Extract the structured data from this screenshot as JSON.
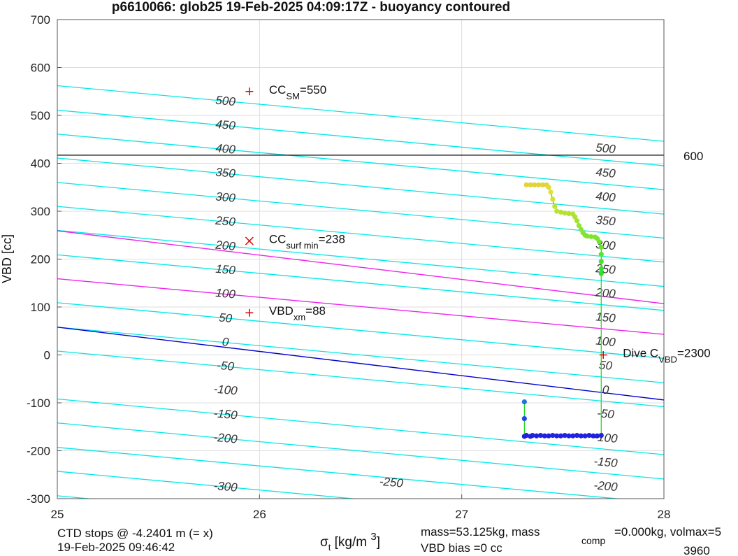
{
  "chart_data": {
    "type": "scatter",
    "title": "p6610066: glob25 19-Feb-2025 04:09:17Z - buoyancy contoured",
    "xlabel": {
      "sym": "σ",
      "sub": "t",
      "unit": " [kg/m ",
      "sup": "3",
      "close": "]"
    },
    "ylabel": "VBD [cc]",
    "xlim": [
      25,
      28
    ],
    "ylim": [
      -300,
      700
    ],
    "xticks": [
      "25",
      "26",
      "27",
      "28"
    ],
    "yticks": [
      "-300",
      "-200",
      "-100",
      "0",
      "100",
      "200",
      "300",
      "400",
      "500",
      "600",
      "700"
    ],
    "grid": true,
    "contour_lines": [
      {
        "level": -250,
        "at25": -294,
        "at28": -410
      },
      {
        "level": -200,
        "at25": -243,
        "at28": -360
      },
      {
        "level": -150,
        "at25": -193,
        "at28": -309
      },
      {
        "level": -100,
        "at25": -142,
        "at28": -259
      },
      {
        "level": -50,
        "at25": -92,
        "at28": -208
      },
      {
        "level": 0,
        "at25": 8,
        "at28": -108
      },
      {
        "level": 50,
        "at25": 58,
        "at28": -58
      },
      {
        "level": 100,
        "at25": 109,
        "at28": -7
      },
      {
        "level": 150,
        "at25": 209,
        "at28": 93
      },
      {
        "level": 200,
        "at25": 260,
        "at28": 143
      },
      {
        "level": 250,
        "at25": 310,
        "at28": 194
      },
      {
        "level": 300,
        "at25": 360,
        "at28": 244
      },
      {
        "level": 350,
        "at25": 411,
        "at28": 294
      },
      {
        "level": 400,
        "at25": 461,
        "at28": 345
      },
      {
        "level": 450,
        "at25": 511,
        "at28": 395
      },
      {
        "level": 500,
        "at25": 562,
        "at28": 446
      }
    ],
    "magenta_lines": [
      {
        "at25": 159,
        "at28": 43
      },
      {
        "at25": 259,
        "at28": 107
      }
    ],
    "zero_line": {
      "at25": 58,
      "at28": -94
    },
    "hline": {
      "y": 417,
      "label": "600"
    },
    "contour_labels": [
      {
        "text": "-300",
        "x": 25.83,
        "y": -283
      },
      {
        "text": "-250",
        "x": 26.65,
        "y": -274
      },
      {
        "text": "-200",
        "x": 25.83,
        "y": -182
      },
      {
        "text": "-150",
        "x": 25.83,
        "y": -132
      },
      {
        "text": "-100",
        "x": 25.83,
        "y": -81
      },
      {
        "text": "-50",
        "x": 25.83,
        "y": -31
      },
      {
        "text": "0",
        "x": 25.83,
        "y": 19
      },
      {
        "text": "50",
        "x": 25.83,
        "y": 69
      },
      {
        "text": "100",
        "x": 25.83,
        "y": 120
      },
      {
        "text": "150",
        "x": 25.83,
        "y": 170
      },
      {
        "text": "200",
        "x": 25.83,
        "y": 220
      },
      {
        "text": "250",
        "x": 25.83,
        "y": 271
      },
      {
        "text": "300",
        "x": 25.83,
        "y": 321
      },
      {
        "text": "350",
        "x": 25.83,
        "y": 372
      },
      {
        "text": "400",
        "x": 25.83,
        "y": 422
      },
      {
        "text": "450",
        "x": 25.83,
        "y": 472
      },
      {
        "text": "500",
        "x": 25.83,
        "y": 522
      },
      {
        "text": "-200",
        "x": 27.71,
        "y": -282
      },
      {
        "text": "-150",
        "x": 27.71,
        "y": -232
      },
      {
        "text": "-100",
        "x": 27.71,
        "y": -181
      },
      {
        "text": "-50",
        "x": 27.71,
        "y": -131
      },
      {
        "text": "0",
        "x": 27.71,
        "y": -81
      },
      {
        "text": "50",
        "x": 27.71,
        "y": -30
      },
      {
        "text": "100",
        "x": 27.71,
        "y": 20
      },
      {
        "text": "150",
        "x": 27.71,
        "y": 70
      },
      {
        "text": "200",
        "x": 27.71,
        "y": 121
      },
      {
        "text": "250",
        "x": 27.71,
        "y": 171
      },
      {
        "text": "300",
        "x": 27.71,
        "y": 221
      },
      {
        "text": "350",
        "x": 27.71,
        "y": 272
      },
      {
        "text": "400",
        "x": 27.71,
        "y": 322
      },
      {
        "text": "450",
        "x": 27.71,
        "y": 372
      },
      {
        "text": "500",
        "x": 27.71,
        "y": 423
      }
    ],
    "markers": [
      {
        "x": 25.95,
        "y": 550,
        "symbol": "+",
        "color": "#e00000",
        "label": "CC",
        "sub": "SM",
        "suffix": "=550"
      },
      {
        "x": 25.95,
        "y": 238,
        "symbol": "x",
        "color": "#e00000",
        "label": "CC",
        "sub": "surf min",
        "suffix": "=238"
      },
      {
        "x": 25.95,
        "y": 88,
        "symbol": "+",
        "color": "#e00000",
        "label": "VBD",
        "sub": "xm",
        "suffix": "=88"
      },
      {
        "x": 27.7,
        "y": 0,
        "symbol": "+",
        "color": "#e00000",
        "label": "Dive C",
        "sub": "VBD",
        "suffix": "=2300"
      }
    ],
    "trace_line_color": "#22dd22",
    "descent_points": [
      {
        "x": 27.32,
        "y": 355
      },
      {
        "x": 27.34,
        "y": 355
      },
      {
        "x": 27.36,
        "y": 355
      },
      {
        "x": 27.38,
        "y": 355
      },
      {
        "x": 27.4,
        "y": 355
      },
      {
        "x": 27.42,
        "y": 355
      },
      {
        "x": 27.43,
        "y": 350
      },
      {
        "x": 27.44,
        "y": 340
      },
      {
        "x": 27.45,
        "y": 325
      },
      {
        "x": 27.46,
        "y": 310
      },
      {
        "x": 27.47,
        "y": 300
      },
      {
        "x": 27.49,
        "y": 298
      },
      {
        "x": 27.51,
        "y": 296
      },
      {
        "x": 27.53,
        "y": 295
      },
      {
        "x": 27.55,
        "y": 294
      },
      {
        "x": 27.56,
        "y": 288
      },
      {
        "x": 27.57,
        "y": 280
      },
      {
        "x": 27.58,
        "y": 270
      },
      {
        "x": 27.59,
        "y": 262
      },
      {
        "x": 27.6,
        "y": 255
      },
      {
        "x": 27.61,
        "y": 250
      },
      {
        "x": 27.62,
        "y": 248
      },
      {
        "x": 27.64,
        "y": 247
      },
      {
        "x": 27.66,
        "y": 246
      },
      {
        "x": 27.67,
        "y": 243
      },
      {
        "x": 27.68,
        "y": 236
      },
      {
        "x": 27.69,
        "y": 225
      },
      {
        "x": 27.69,
        "y": 210
      },
      {
        "x": 27.69,
        "y": 195
      },
      {
        "x": 27.69,
        "y": 180
      },
      {
        "x": 27.69,
        "y": 170
      }
    ],
    "climb_points": [
      {
        "x": 27.69,
        "y": -168
      },
      {
        "x": 27.67,
        "y": -169
      },
      {
        "x": 27.65,
        "y": -169
      },
      {
        "x": 27.63,
        "y": -168
      },
      {
        "x": 27.61,
        "y": -169
      },
      {
        "x": 27.59,
        "y": -169
      },
      {
        "x": 27.57,
        "y": -168
      },
      {
        "x": 27.55,
        "y": -169
      },
      {
        "x": 27.53,
        "y": -169
      },
      {
        "x": 27.51,
        "y": -168
      },
      {
        "x": 27.49,
        "y": -169
      },
      {
        "x": 27.47,
        "y": -169
      },
      {
        "x": 27.45,
        "y": -168
      },
      {
        "x": 27.43,
        "y": -169
      },
      {
        "x": 27.41,
        "y": -169
      },
      {
        "x": 27.39,
        "y": -168
      },
      {
        "x": 27.37,
        "y": -169
      },
      {
        "x": 27.35,
        "y": -168
      },
      {
        "x": 27.34,
        "y": -170
      },
      {
        "x": 27.32,
        "y": -168
      },
      {
        "x": 27.31,
        "y": -170
      },
      {
        "x": 27.31,
        "y": -133
      },
      {
        "x": 27.31,
        "y": -98
      }
    ]
  },
  "footer": {
    "ctd_line1": "CTD stops @ -4.2401 m (= x)",
    "ctd_line2": "19-Feb-2025 09:46:42",
    "mass_text": "mass=53.125kg, mass",
    "mass_sub": "comp",
    "mass_suffix": "=0.000kg, volmax=5",
    "bias_text": "VBD bias =0 cc",
    "vol_value": "3960"
  },
  "colors": {
    "contour": "#00e8e8",
    "magenta": "#ee22ee",
    "zero_line": "#0000cc",
    "grid": "#dddddd",
    "hline": "#000000"
  }
}
